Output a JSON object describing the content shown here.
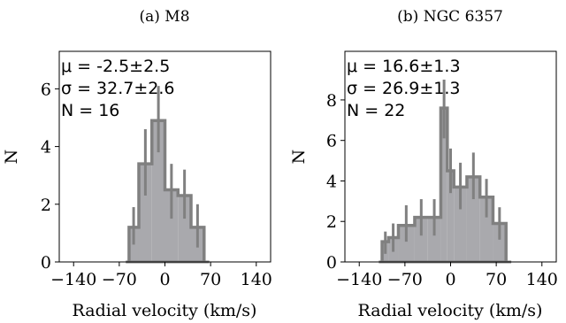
{
  "chart_data": [
    {
      "type": "bar",
      "title": "(a) M8",
      "xlabel": "Radial velocity (km/s)",
      "ylabel": "N",
      "xlim": [
        -162,
        162
      ],
      "ylim": [
        0,
        7.3
      ],
      "xticks": [
        -140,
        -70,
        0,
        70,
        140
      ],
      "yticks": [
        0,
        2,
        4,
        6
      ],
      "annotations": [
        "μ = -2.5±2.5",
        "σ = 32.7±2.6",
        "N = 16"
      ],
      "bin_edges": [
        -55,
        -40,
        -20,
        0,
        20,
        40,
        60
      ],
      "counts": [
        1.2,
        3.4,
        4.9,
        2.5,
        2.3,
        1.2
      ],
      "error_x": [
        -48,
        -30,
        -10,
        10,
        30,
        50
      ],
      "error_lo": [
        0.6,
        2.3,
        3.8,
        1.5,
        1.5,
        0.5
      ],
      "error_hi": [
        1.9,
        4.6,
        6.1,
        3.4,
        3.2,
        2.0
      ],
      "color": "#a9a9ad",
      "edge_color": "#808080"
    },
    {
      "type": "bar",
      "title": "(b) NGC 6357",
      "xlabel": "Radial velocity (km/s)",
      "ylabel": "N",
      "xlim": [
        -162,
        162
      ],
      "ylim": [
        0,
        10.4
      ],
      "xticks": [
        -140,
        -70,
        0,
        70,
        140
      ],
      "yticks": [
        0,
        2,
        4,
        6,
        8
      ],
      "annotations": [
        "μ = 16.6±1.3",
        "σ = 26.9±1.3",
        "N = 22"
      ],
      "bin_edges": [
        -105,
        -95,
        -80,
        -55,
        -35,
        -15,
        -5,
        5,
        25,
        45,
        65,
        85
      ],
      "counts": [
        1.0,
        1.2,
        1.8,
        2.2,
        2.2,
        7.6,
        4.5,
        3.7,
        4.2,
        3.2,
        1.9
      ],
      "error_x": [
        -100,
        -88,
        -68,
        -45,
        -25,
        -10,
        0,
        15,
        35,
        55,
        75
      ],
      "error_lo": [
        0.4,
        0.5,
        1.0,
        1.3,
        1.3,
        6.1,
        3.4,
        2.6,
        3.1,
        2.2,
        1.1
      ],
      "error_hi": [
        1.5,
        1.9,
        2.8,
        3.1,
        3.1,
        9.0,
        5.6,
        4.9,
        5.4,
        4.1,
        2.7
      ],
      "color": "#a9a9ad",
      "edge_color": "#808080"
    }
  ]
}
